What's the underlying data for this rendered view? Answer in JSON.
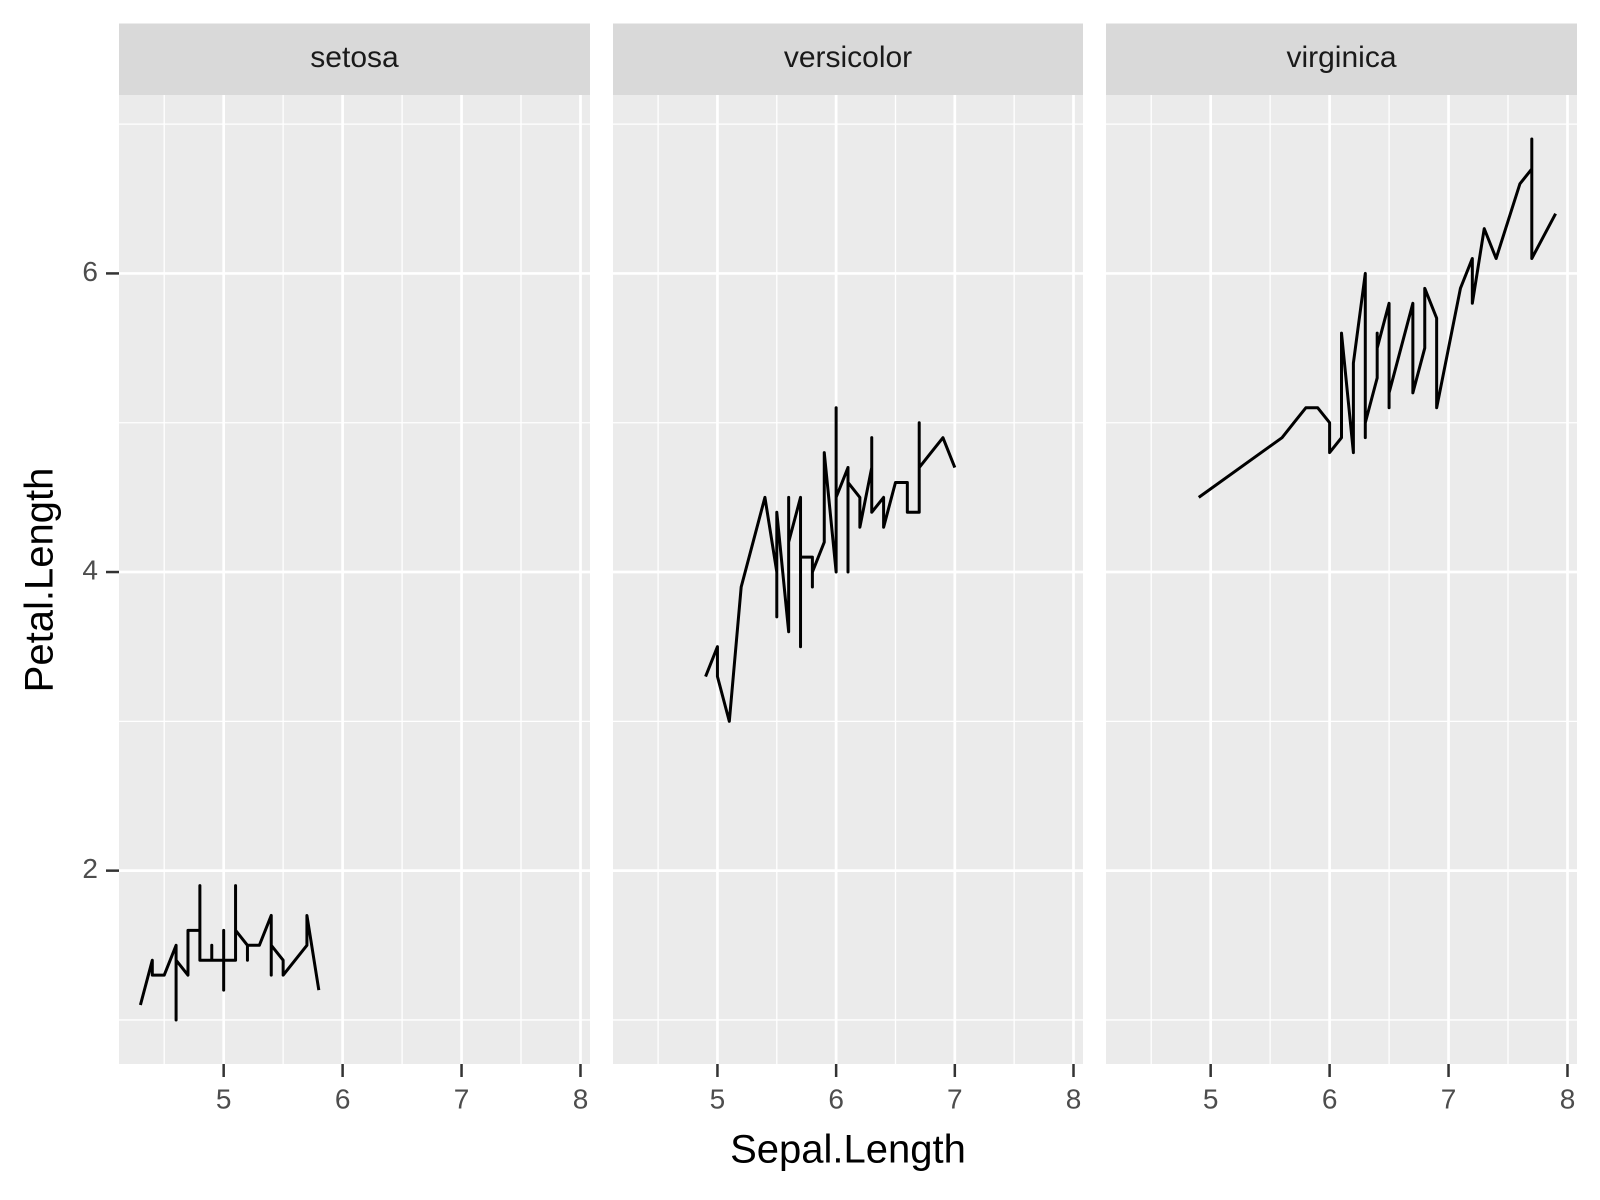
{
  "chart_data": {
    "type": "line",
    "facet": true,
    "x_label": "Sepal.Length",
    "y_label": "Petal.Length",
    "xlim": [
      4.12,
      8.08
    ],
    "ylim": [
      0.705,
      7.195
    ],
    "xticks": [
      5,
      6,
      7,
      8
    ],
    "yticks": [
      2,
      4,
      6
    ],
    "grid": true,
    "color": "#000000",
    "series": [
      {
        "name": "setosa",
        "x": [
          4.3,
          4.4,
          4.4,
          4.4,
          4.5,
          4.6,
          4.6,
          4.6,
          4.6,
          4.7,
          4.7,
          4.8,
          4.8,
          4.8,
          4.8,
          4.8,
          4.9,
          4.9,
          4.9,
          4.9,
          5.0,
          5.0,
          5.0,
          5.0,
          5.0,
          5.0,
          5.0,
          5.0,
          5.1,
          5.1,
          5.1,
          5.1,
          5.1,
          5.1,
          5.1,
          5.1,
          5.2,
          5.2,
          5.2,
          5.3,
          5.4,
          5.4,
          5.4,
          5.4,
          5.4,
          5.5,
          5.5,
          5.7,
          5.7,
          5.8
        ],
        "values": [
          1.1,
          1.4,
          1.3,
          1.3,
          1.3,
          1.5,
          1.4,
          1.0,
          1.4,
          1.3,
          1.6,
          1.6,
          1.4,
          1.9,
          1.6,
          1.4,
          1.4,
          1.5,
          1.5,
          1.4,
          1.4,
          1.5,
          1.6,
          1.6,
          1.2,
          1.3,
          1.6,
          1.4,
          1.4,
          1.4,
          1.5,
          1.5,
          1.7,
          1.5,
          1.9,
          1.6,
          1.5,
          1.4,
          1.5,
          1.5,
          1.7,
          1.5,
          1.3,
          1.7,
          1.5,
          1.4,
          1.3,
          1.5,
          1.7,
          1.2
        ]
      },
      {
        "name": "versicolor",
        "x": [
          4.9,
          5.0,
          5.0,
          5.1,
          5.2,
          5.4,
          5.5,
          5.5,
          5.5,
          5.5,
          5.5,
          5.6,
          5.6,
          5.6,
          5.6,
          5.6,
          5.7,
          5.7,
          5.7,
          5.7,
          5.7,
          5.8,
          5.8,
          5.8,
          5.9,
          5.9,
          6.0,
          6.0,
          6.0,
          6.0,
          6.1,
          6.1,
          6.1,
          6.1,
          6.2,
          6.2,
          6.3,
          6.3,
          6.3,
          6.4,
          6.4,
          6.5,
          6.6,
          6.6,
          6.7,
          6.7,
          6.7,
          6.8,
          6.9,
          7.0
        ],
        "values": [
          3.3,
          3.5,
          3.3,
          3.0,
          3.9,
          4.5,
          4.0,
          3.8,
          3.7,
          4.0,
          4.4,
          3.6,
          4.5,
          3.9,
          4.1,
          4.2,
          4.5,
          3.5,
          4.2,
          4.2,
          4.1,
          4.1,
          3.9,
          4.0,
          4.2,
          4.8,
          4.0,
          4.5,
          5.1,
          4.5,
          4.7,
          4.0,
          4.7,
          4.6,
          4.5,
          4.3,
          4.7,
          4.9,
          4.4,
          4.5,
          4.3,
          4.6,
          4.6,
          4.4,
          4.4,
          5.0,
          4.7,
          4.8,
          4.9,
          4.7
        ]
      },
      {
        "name": "virginica",
        "x": [
          4.9,
          5.6,
          5.7,
          5.8,
          5.8,
          5.8,
          5.9,
          6.0,
          6.0,
          6.1,
          6.1,
          6.2,
          6.2,
          6.3,
          6.3,
          6.3,
          6.3,
          6.3,
          6.3,
          6.4,
          6.4,
          6.4,
          6.4,
          6.4,
          6.5,
          6.5,
          6.5,
          6.5,
          6.7,
          6.7,
          6.7,
          6.7,
          6.7,
          6.8,
          6.8,
          6.9,
          6.9,
          6.9,
          7.1,
          7.2,
          7.2,
          7.2,
          7.3,
          7.4,
          7.6,
          7.7,
          7.7,
          7.7,
          7.7,
          7.9
        ],
        "values": [
          4.5,
          4.9,
          5.0,
          5.1,
          5.1,
          5.1,
          5.1,
          5.0,
          4.8,
          4.9,
          5.6,
          4.8,
          5.4,
          6.0,
          5.6,
          4.9,
          5.1,
          5.6,
          5.0,
          5.3,
          5.3,
          5.6,
          5.6,
          5.5,
          5.8,
          5.1,
          5.5,
          5.2,
          5.8,
          5.7,
          5.6,
          5.7,
          5.2,
          5.5,
          5.9,
          5.7,
          5.4,
          5.1,
          5.9,
          6.1,
          6.0,
          5.8,
          6.3,
          6.1,
          6.6,
          6.7,
          6.9,
          6.7,
          6.1,
          6.4
        ]
      }
    ]
  }
}
